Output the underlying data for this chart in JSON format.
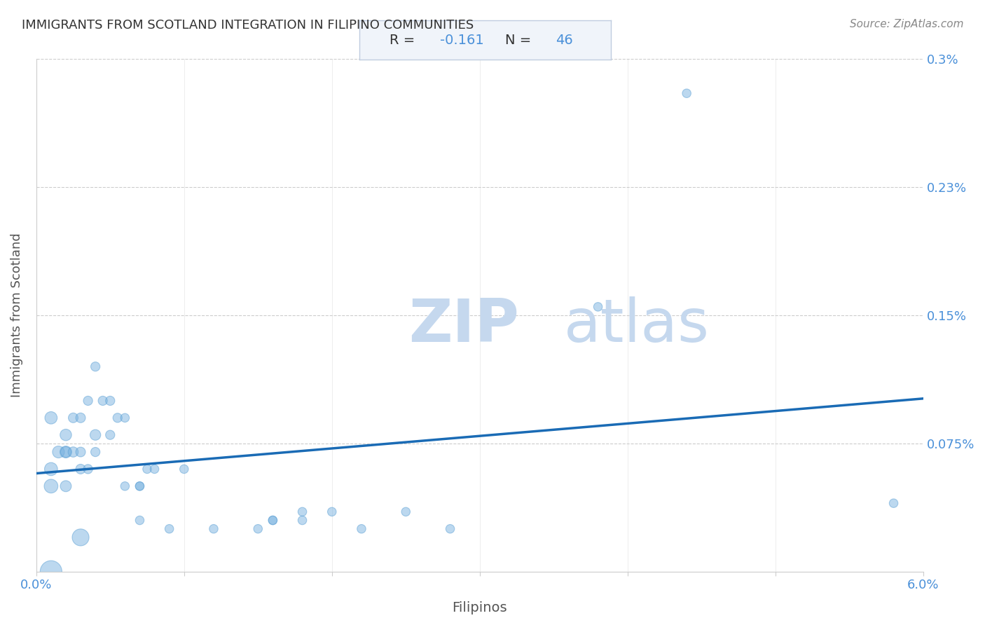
{
  "title": "IMMIGRANTS FROM SCOTLAND INTEGRATION IN FILIPINO COMMUNITIES",
  "source": "Source: ZipAtlas.com",
  "xlabel": "Filipinos",
  "ylabel": "Immigrants from Scotland",
  "x_min": 0.0,
  "x_max": 0.06,
  "y_min": 0.0,
  "y_max": 0.003,
  "x_ticks": [
    0.0,
    0.01,
    0.02,
    0.03,
    0.04,
    0.05,
    0.06
  ],
  "x_tick_labels": [
    "0.0%",
    "",
    "",
    "",
    "",
    "",
    "6.0%"
  ],
  "y_ticks": [
    0.0,
    0.00075,
    0.0015,
    0.00225,
    0.003
  ],
  "y_tick_labels": [
    "",
    "0.075%",
    "0.15%",
    "0.23%",
    "0.3%"
  ],
  "R": -0.161,
  "N": 46,
  "scatter_color": "#7ab3e0",
  "scatter_alpha": 0.5,
  "scatter_edgecolor": "#5a9fd4",
  "line_color": "#1a6bb5",
  "watermark_zip": "ZIP",
  "watermark_atlas": "atlas",
  "watermark_color": "#c5d8ee",
  "annotation_box_color": "#f0f4fa",
  "annotation_border_color": "#c0cce0",
  "title_color": "#333333",
  "tick_color": "#4a90d9",
  "grid_color": "#cccccc",
  "points_x": [
    0.003,
    0.002,
    0.004,
    0.001,
    0.001,
    0.001,
    0.001,
    0.0015,
    0.002,
    0.002,
    0.002,
    0.0025,
    0.0025,
    0.003,
    0.003,
    0.003,
    0.0035,
    0.0035,
    0.004,
    0.004,
    0.0045,
    0.005,
    0.005,
    0.0055,
    0.006,
    0.006,
    0.007,
    0.007,
    0.007,
    0.0075,
    0.008,
    0.009,
    0.01,
    0.012,
    0.015,
    0.016,
    0.016,
    0.018,
    0.018,
    0.02,
    0.022,
    0.025,
    0.028,
    0.038,
    0.044,
    0.058
  ],
  "points_y": [
    0.0002,
    0.0007,
    0.0008,
    0.0,
    0.0005,
    0.0006,
    0.0009,
    0.0007,
    0.0008,
    0.0005,
    0.0007,
    0.0007,
    0.0009,
    0.0006,
    0.0007,
    0.0009,
    0.0006,
    0.001,
    0.0007,
    0.0012,
    0.001,
    0.0008,
    0.001,
    0.0009,
    0.0005,
    0.0009,
    0.0005,
    0.0005,
    0.0003,
    0.0006,
    0.0006,
    0.00025,
    0.0006,
    0.00025,
    0.00025,
    0.0003,
    0.0003,
    0.00035,
    0.0003,
    0.00035,
    0.00025,
    0.00035,
    0.00025,
    0.00155,
    0.0028,
    0.0004
  ],
  "sizes": [
    300,
    150,
    120,
    500,
    200,
    180,
    160,
    150,
    140,
    130,
    120,
    110,
    100,
    100,
    100,
    100,
    90,
    90,
    90,
    90,
    90,
    90,
    90,
    90,
    80,
    80,
    80,
    80,
    80,
    80,
    80,
    80,
    80,
    80,
    80,
    80,
    80,
    80,
    80,
    80,
    80,
    80,
    80,
    80,
    80,
    80
  ]
}
